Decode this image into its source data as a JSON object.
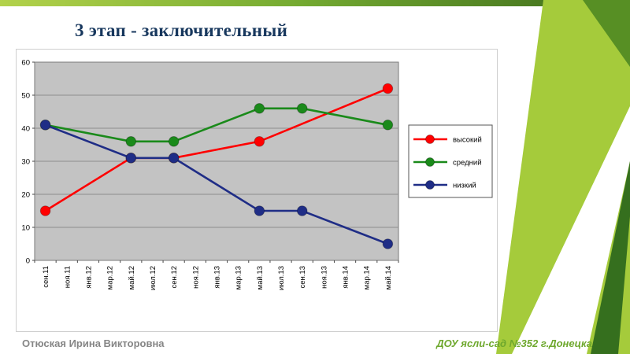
{
  "slide": {
    "title": "3 этап - заключительный",
    "footer": {
      "author": "Отюская Ирина Викторовна",
      "institution": "ДОУ ясли-сад №352 г.Донецка"
    }
  },
  "theme": {
    "title_color": "#17375d",
    "author_color": "#868686",
    "institution_color": "#6ea82d",
    "top_bar_colors": [
      "#b3d24b",
      "#74aa31",
      "#41701d"
    ],
    "decor_lime": "#a5cb3b",
    "decor_dark": "#356f1e",
    "decor_corner": "#578f24"
  },
  "chart_data": {
    "type": "line",
    "title": "",
    "xlabel": "",
    "ylabel": "",
    "ylim": [
      0,
      60
    ],
    "yticks": [
      0,
      10,
      20,
      30,
      40,
      50,
      60
    ],
    "grid": true,
    "plot_bg": "#c3c3c3",
    "legend_position": "right",
    "categories": [
      "сен.11",
      "ноя.11",
      "янв.12",
      "мар.12",
      "май.12",
      "июл.12",
      "сен.12",
      "ноя.12",
      "янв.13",
      "мар.13",
      "май.13",
      "июл.13",
      "сен.13",
      "ноя.13",
      "янв.14",
      "мар.14",
      "май.14"
    ],
    "series": [
      {
        "name": "высокий",
        "color": "#ff0000",
        "values": [
          15,
          null,
          null,
          null,
          31,
          null,
          31,
          null,
          null,
          null,
          36,
          null,
          null,
          null,
          null,
          null,
          52
        ]
      },
      {
        "name": "средний",
        "color": "#1a8a1a",
        "values": [
          41,
          null,
          null,
          null,
          36,
          null,
          36,
          null,
          null,
          null,
          46,
          null,
          46,
          null,
          null,
          null,
          41
        ]
      },
      {
        "name": "низкий",
        "color": "#1f2d86",
        "values": [
          41,
          null,
          null,
          null,
          31,
          null,
          31,
          null,
          null,
          null,
          15,
          null,
          15,
          null,
          null,
          null,
          5
        ]
      }
    ]
  }
}
